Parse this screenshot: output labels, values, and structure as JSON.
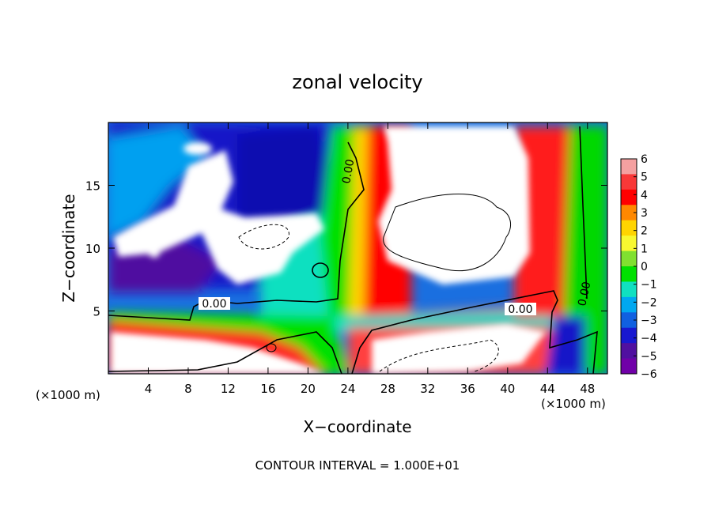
{
  "chart_data": {
    "type": "heatmap",
    "title": "zonal velocity",
    "xlabel": "X−coordinate",
    "ylabel": "Z−coordinate",
    "x_unit_label": "(×1000 m)",
    "footer": "CONTOUR INTERVAL = 1.000E+01",
    "xlim": [
      0,
      50
    ],
    "ylim": [
      0,
      20
    ],
    "x_ticks": [
      4,
      8,
      12,
      16,
      20,
      24,
      28,
      32,
      36,
      40,
      44,
      48
    ],
    "y_ticks": [
      5,
      10,
      15
    ],
    "colorbar": {
      "ticks": [
        6,
        5,
        4,
        3,
        2,
        1,
        0,
        -1,
        -2,
        -3,
        -4,
        -5,
        -6
      ],
      "tick_labels": [
        "6",
        "5",
        "4",
        "3",
        "2",
        "1",
        "0",
        "−1",
        "−2",
        "−3",
        "−4",
        "−5",
        "−6"
      ],
      "colors": [
        "#f4a0a0",
        "#f83838",
        "#ff0000",
        "#ff8800",
        "#ffd400",
        "#f8f830",
        "#80e030",
        "#00e000",
        "#10e0c0",
        "#00a8f0",
        "#1060e0",
        "#1818d0",
        "#5010a0",
        "#7000a8"
      ]
    },
    "contour_labels": [
      "0.00",
      "0.00",
      "0.00",
      "0.00"
    ]
  }
}
